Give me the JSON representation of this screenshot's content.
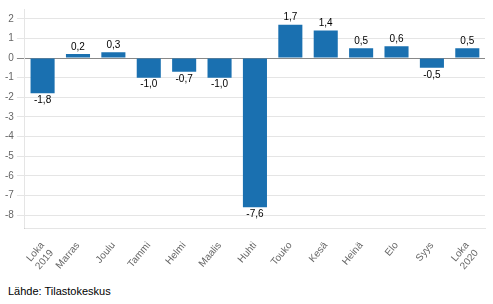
{
  "chart_data": {
    "type": "bar",
    "categories": [
      "Loka\n2019",
      "Marras",
      "Joulu",
      "Tammi",
      "Helmi",
      "Maalis",
      "Huhti",
      "Touko",
      "Kesä",
      "Heinä",
      "Elo",
      "Syys",
      "Loka\n2020"
    ],
    "values": [
      -1.8,
      0.2,
      0.3,
      -1.0,
      -0.7,
      -1.0,
      -7.6,
      1.7,
      1.4,
      0.5,
      0.6,
      -0.5,
      0.5
    ],
    "value_labels": [
      "-1,8",
      "0,2",
      "0,3",
      "-1,0",
      "-0,7",
      "-1,0",
      "-7,6",
      "1,7",
      "1,4",
      "0,5",
      "0,6",
      "-0,5",
      "0,5"
    ],
    "color": "#1a70b0",
    "ylim": [
      -8.7,
      2.5
    ],
    "yticks": [
      -8,
      -7,
      -6,
      -5,
      -4,
      -3,
      -2,
      -1,
      0,
      1,
      2
    ],
    "grid": true,
    "data_labels": true,
    "source": "Lähde: Tilastokeskus"
  }
}
